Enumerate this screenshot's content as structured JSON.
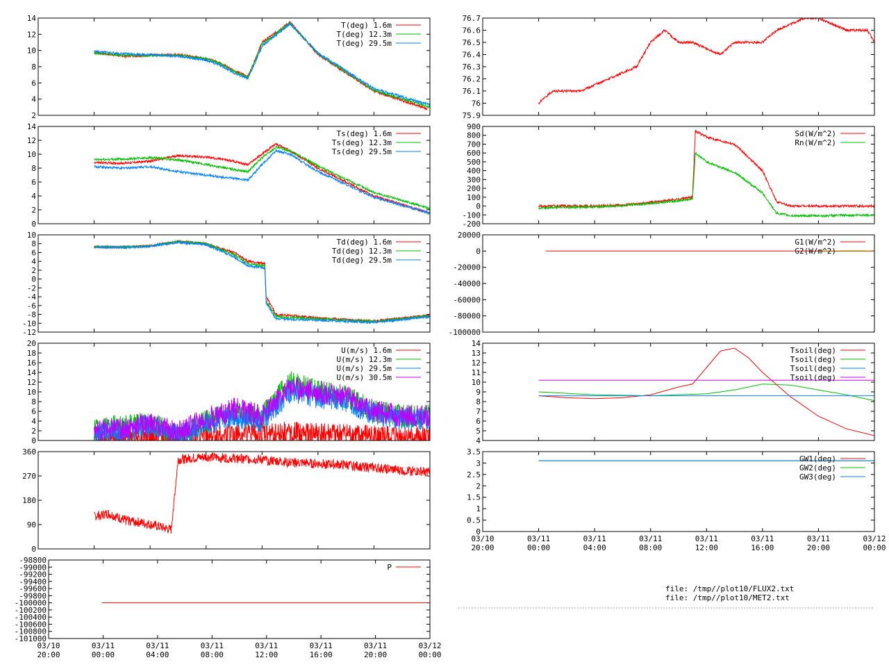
{
  "x_axis": {
    "ticks": [
      {
        "date": "03/10",
        "time": "20:00"
      },
      {
        "date": "03/11",
        "time": "00:00"
      },
      {
        "date": "03/11",
        "time": "04:00"
      },
      {
        "date": "03/11",
        "time": "08:00"
      },
      {
        "date": "03/11",
        "time": "12:00"
      },
      {
        "date": "03/11",
        "time": "16:00"
      },
      {
        "date": "03/11",
        "time": "20:00"
      },
      {
        "date": "03/12",
        "time": "00:00"
      }
    ],
    "range_hours": [
      0,
      28
    ]
  },
  "colors": {
    "red": "#ff0000",
    "green": "#00c000",
    "blue": "#0080ff",
    "purple": "#c000ff",
    "olive": "#a08000"
  },
  "files": [
    "file: /tmp//plot10/FLUX2.txt",
    "file: /tmp//plot10/MET2.txt"
  ],
  "chart_data": [
    {
      "id": "temperature",
      "type": "line",
      "ylim": [
        2,
        14
      ],
      "yticks": [
        "2",
        "4",
        "6",
        "8",
        "10",
        "12",
        "14"
      ],
      "series": [
        {
          "name": "T(deg)  1.6m",
          "color": "red",
          "x": [
            4,
            6,
            8,
            10,
            12,
            13,
            14,
            15,
            16,
            18,
            20,
            24,
            27.8
          ],
          "y": [
            9.8,
            9.3,
            9.4,
            9.5,
            9,
            8.5,
            7.5,
            6.8,
            11,
            13.5,
            9.5,
            5,
            2.8
          ]
        },
        {
          "name": "T(deg) 12.3m",
          "color": "green",
          "x": [
            4,
            6,
            8,
            10,
            12,
            13,
            14,
            15,
            16,
            18,
            20,
            24,
            28
          ],
          "y": [
            9.7,
            9.4,
            9.4,
            9.4,
            9,
            8.4,
            7.4,
            6.7,
            10.8,
            13.4,
            9.6,
            5.1,
            3
          ]
        },
        {
          "name": "T(deg) 29.5m",
          "color": "blue",
          "x": [
            4,
            6,
            8,
            10,
            12,
            13,
            14,
            15,
            16,
            18,
            20,
            24,
            28
          ],
          "y": [
            9.9,
            9.6,
            9.5,
            9.3,
            8.8,
            8.2,
            7.2,
            6.5,
            10.5,
            13.3,
            9.7,
            5.3,
            3.3
          ]
        }
      ]
    },
    {
      "id": "surface-temperature",
      "type": "line",
      "ylim": [
        0,
        14
      ],
      "yticks": [
        "0",
        "2",
        "4",
        "6",
        "8",
        "10",
        "12",
        "14"
      ],
      "series": [
        {
          "name": "Ts(deg)  1.6m",
          "color": "red",
          "x": [
            4,
            6,
            8,
            10,
            12,
            14,
            15,
            16,
            17,
            18,
            20,
            24,
            28
          ],
          "y": [
            8.8,
            8.7,
            9,
            9.8,
            9.6,
            9,
            8.5,
            10,
            11.5,
            10.5,
            8,
            4,
            1.5
          ]
        },
        {
          "name": "Ts(deg) 12.3m",
          "color": "green",
          "x": [
            4,
            6,
            8,
            10,
            12,
            14,
            15,
            16,
            17,
            18,
            20,
            24,
            28
          ],
          "y": [
            9.2,
            9.3,
            9.5,
            9.2,
            8.5,
            7.8,
            7.5,
            9.5,
            11,
            10.5,
            8.3,
            4.5,
            2.2
          ]
        },
        {
          "name": "Ts(deg) 29.5m",
          "color": "blue",
          "x": [
            4,
            6,
            8,
            10,
            12,
            14,
            15,
            16,
            17,
            18,
            20,
            24,
            28
          ],
          "y": [
            8.2,
            8,
            8.2,
            7.5,
            7,
            6.5,
            6.3,
            8.5,
            10.5,
            10,
            7.5,
            3.8,
            1.5
          ]
        }
      ]
    },
    {
      "id": "dewpoint",
      "type": "line",
      "ylim": [
        -12,
        10
      ],
      "yticks": [
        "-12",
        "-10",
        "-8",
        "-6",
        "-4",
        "-2",
        "0",
        "2",
        "4",
        "6",
        "8",
        "10"
      ],
      "series": [
        {
          "name": "Td(deg)  1.6m",
          "color": "red",
          "x": [
            4,
            6,
            8,
            10,
            12,
            14,
            15,
            16.2,
            16.3,
            17,
            20,
            24,
            28
          ],
          "y": [
            7.3,
            7.2,
            7.5,
            8.5,
            8,
            6,
            4,
            3.5,
            -4,
            -8,
            -8.8,
            -9.5,
            -8.2
          ]
        },
        {
          "name": "Td(deg) 12.3m",
          "color": "green",
          "x": [
            4,
            6,
            8,
            10,
            12,
            14,
            15,
            16.2,
            16.3,
            17,
            20,
            24,
            28
          ],
          "y": [
            7.3,
            7.2,
            7.5,
            8.5,
            8,
            5.5,
            3.5,
            3,
            -5,
            -8.5,
            -9,
            -9.6,
            -8.3
          ]
        },
        {
          "name": "Td(deg) 29.5m",
          "color": "blue",
          "x": [
            4,
            6,
            8,
            10,
            12,
            14,
            15,
            16.2,
            16.3,
            17,
            20,
            24,
            28
          ],
          "y": [
            7.2,
            7.1,
            7.4,
            8.3,
            7.8,
            5,
            3,
            2.5,
            -5.5,
            -9,
            -9.3,
            -9.8,
            -8.5
          ]
        }
      ]
    },
    {
      "id": "wind-speed",
      "type": "line",
      "ylim": [
        0,
        20
      ],
      "yticks": [
        "0",
        "2",
        "4",
        "6",
        "8",
        "10",
        "12",
        "14",
        "16",
        "18",
        "20"
      ],
      "series": [
        {
          "name": "U(m/s)  1.6m",
          "color": "red",
          "x": [
            4,
            6,
            8,
            10,
            12,
            14,
            16,
            18,
            20,
            22,
            24,
            26,
            28
          ],
          "y": [
            0.5,
            0.8,
            1,
            0.5,
            1,
            1,
            1.5,
            1.5,
            1.2,
            1,
            0.8,
            0.6,
            0.5
          ]
        },
        {
          "name": "U(m/s) 12.3m",
          "color": "green",
          "x": [
            4,
            6,
            8,
            10,
            12,
            14,
            16,
            18,
            20,
            22,
            24,
            26,
            28
          ],
          "y": [
            2,
            3,
            3.5,
            1,
            4,
            6,
            5,
            12,
            10,
            9,
            6,
            5,
            5
          ]
        },
        {
          "name": "U(m/s) 29.5m",
          "color": "blue",
          "x": [
            4,
            6,
            8,
            10,
            12,
            14,
            16,
            18,
            20,
            22,
            24,
            26,
            28
          ],
          "y": [
            1.5,
            2,
            3,
            1,
            3.5,
            5,
            4,
            10,
            9,
            8,
            5.5,
            4.5,
            4.5
          ]
        },
        {
          "name": "U(m/s) 30.5m",
          "color": "purple",
          "x": [
            4,
            6,
            8,
            10,
            12,
            14,
            16,
            18,
            20,
            22,
            24,
            26,
            28
          ],
          "y": [
            2,
            2.5,
            3.5,
            1.5,
            4.5,
            6.5,
            5,
            11,
            10,
            9,
            6,
            5,
            5
          ]
        }
      ]
    },
    {
      "id": "wind-direction",
      "type": "line",
      "ylim": [
        0,
        360
      ],
      "yticks": [
        "0",
        "90",
        "180",
        "270",
        "360"
      ],
      "series": [
        {
          "name": "",
          "color": "red",
          "x": [
            4,
            5,
            6,
            8,
            9.5,
            10,
            12,
            14,
            16,
            18,
            20,
            22,
            24,
            26,
            28
          ],
          "y": [
            120,
            130,
            110,
            90,
            70,
            330,
            340,
            335,
            330,
            320,
            315,
            310,
            300,
            290,
            285
          ]
        }
      ]
    },
    {
      "id": "pressure",
      "type": "line",
      "ylim": [
        -101000,
        -98800
      ],
      "yticks": [
        "-101000",
        "-100800",
        "-100600",
        "-100400",
        "-100200",
        "-100000",
        "-99800",
        "-99600",
        "-99400",
        "-99200",
        "-99000",
        "-98800"
      ],
      "series": [
        {
          "name": "P",
          "color": "red",
          "x": [
            3.9,
            28
          ],
          "y": [
            -100000,
            -100000
          ]
        }
      ]
    },
    {
      "id": "right-top",
      "type": "line",
      "ylim": [
        75.9,
        76.7
      ],
      "yticks": [
        "75.9",
        "76",
        "76.1",
        "76.2",
        "76.3",
        "76.4",
        "76.5",
        "76.6",
        "76.7"
      ],
      "series": [
        {
          "name": "",
          "color": "red",
          "x": [
            4,
            5,
            7,
            9,
            11,
            12,
            13,
            14,
            15,
            17,
            18,
            20,
            21,
            23,
            24,
            26,
            27.5,
            28
          ],
          "y": [
            76,
            76.1,
            76.1,
            76.2,
            76.3,
            76.5,
            76.6,
            76.5,
            76.5,
            76.4,
            76.5,
            76.5,
            76.6,
            76.7,
            76.7,
            76.6,
            76.6,
            76.5
          ]
        }
      ]
    },
    {
      "id": "radiation",
      "type": "line",
      "ylim": [
        -200,
        900
      ],
      "yticks": [
        "-200",
        "-100",
        "0",
        "100",
        "200",
        "300",
        "400",
        "500",
        "600",
        "700",
        "800",
        "900"
      ],
      "series": [
        {
          "name": "Sd(W/m^2)",
          "color": "red",
          "x": [
            4,
            6,
            8,
            10,
            12,
            14,
            15,
            15.2,
            16,
            18,
            20,
            21,
            22,
            24,
            28
          ],
          "y": [
            0,
            0,
            0,
            10,
            40,
            80,
            100,
            850,
            780,
            700,
            400,
            50,
            0,
            0,
            0
          ]
        },
        {
          "name": "Rn(W/m^2)",
          "color": "green",
          "x": [
            4,
            6,
            8,
            10,
            12,
            14,
            15,
            15.2,
            16,
            18,
            20,
            21,
            22,
            24,
            28
          ],
          "y": [
            -20,
            -15,
            -10,
            5,
            30,
            60,
            80,
            600,
            500,
            380,
            150,
            -80,
            -110,
            -110,
            -100
          ]
        }
      ]
    },
    {
      "id": "ground-heat-flux",
      "type": "line",
      "ylim": [
        -100000,
        20000
      ],
      "yticks": [
        "-100000",
        "-80000",
        "-60000",
        "-40000",
        "-20000",
        "0",
        "20000"
      ],
      "series": [
        {
          "name": "G1(W/m^2)",
          "color": "red",
          "x": [
            4.5,
            28
          ],
          "y": [
            0,
            0
          ]
        },
        {
          "name": "G2(W/m^2)",
          "color": "olive",
          "x": [
            24,
            28
          ],
          "y": [
            -200,
            -200
          ]
        }
      ]
    },
    {
      "id": "soil-temperature",
      "type": "line",
      "ylim": [
        4,
        14
      ],
      "yticks": [
        "4",
        "5",
        "6",
        "7",
        "8",
        "9",
        "10",
        "11",
        "12",
        "13",
        "14"
      ],
      "series": [
        {
          "name": "Tsoil(deg)",
          "color": "red",
          "x": [
            4,
            6,
            8,
            10,
            12,
            14,
            15,
            16,
            17,
            18,
            19,
            20,
            22,
            24,
            26,
            28
          ],
          "y": [
            8.6,
            8.4,
            8.3,
            8.4,
            8.7,
            9.5,
            9.8,
            11.5,
            13.2,
            13.5,
            12.5,
            11,
            8.5,
            6.5,
            5.2,
            4.5
          ]
        },
        {
          "name": "Tsoil(deg)",
          "color": "green",
          "x": [
            4,
            8,
            12,
            16,
            18,
            20,
            22,
            24,
            26,
            28
          ],
          "y": [
            9,
            8.7,
            8.6,
            8.8,
            9.2,
            9.8,
            9.7,
            9.2,
            8.7,
            8.1
          ]
        },
        {
          "name": "Tsoil(deg)",
          "color": "blue",
          "x": [
            4,
            28
          ],
          "y": [
            8.6,
            8.6
          ]
        },
        {
          "name": "Tsoil(deg)",
          "color": "purple",
          "x": [
            4,
            28
          ],
          "y": [
            10.2,
            10.2
          ]
        }
      ]
    },
    {
      "id": "groundwater",
      "type": "line",
      "ylim": [
        0,
        3.5
      ],
      "yticks": [
        "0",
        "0.5",
        "1",
        "1.5",
        "2",
        "2.5",
        "3",
        "3.5"
      ],
      "series": [
        {
          "name": "GW1(deg)",
          "color": "red",
          "x": [
            4,
            28
          ],
          "y": [
            3.1,
            3.1
          ]
        },
        {
          "name": "GW2(deg)",
          "color": "green",
          "x": [
            4,
            28
          ],
          "y": [
            3.1,
            3.1
          ]
        },
        {
          "name": "GW3(deg)",
          "color": "blue",
          "x": [
            4,
            28
          ],
          "y": [
            3.1,
            3.1
          ]
        }
      ]
    }
  ]
}
